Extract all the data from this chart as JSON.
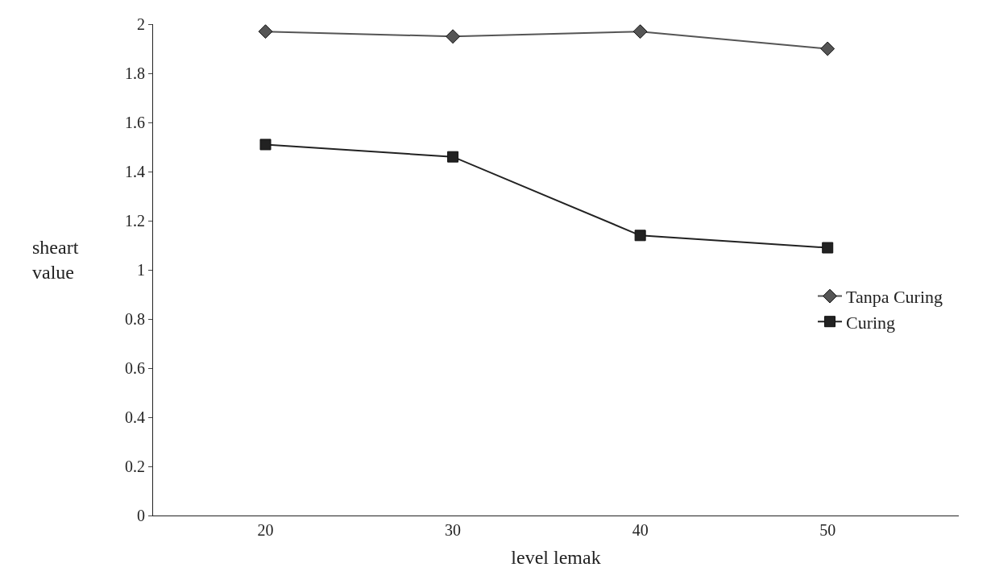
{
  "chart_data": {
    "type": "line",
    "xlabel": "level lemak",
    "ylabel": "sheart\nvalue",
    "categories": [
      "20",
      "30",
      "40",
      "50"
    ],
    "series": [
      {
        "name": "Tanpa Curing",
        "color": "#555555",
        "marker": "diamond",
        "values": [
          1.97,
          1.95,
          1.97,
          1.9
        ]
      },
      {
        "name": "Curing",
        "color": "#222222",
        "marker": "square",
        "values": [
          1.51,
          1.46,
          1.14,
          1.09
        ]
      }
    ],
    "ylim": [
      0,
      2
    ],
    "yticks": [
      0,
      0.2,
      0.4,
      0.6,
      0.8,
      1,
      1.2,
      1.4,
      1.6,
      1.8,
      2
    ],
    "legend": "right",
    "line_style": "solid"
  }
}
